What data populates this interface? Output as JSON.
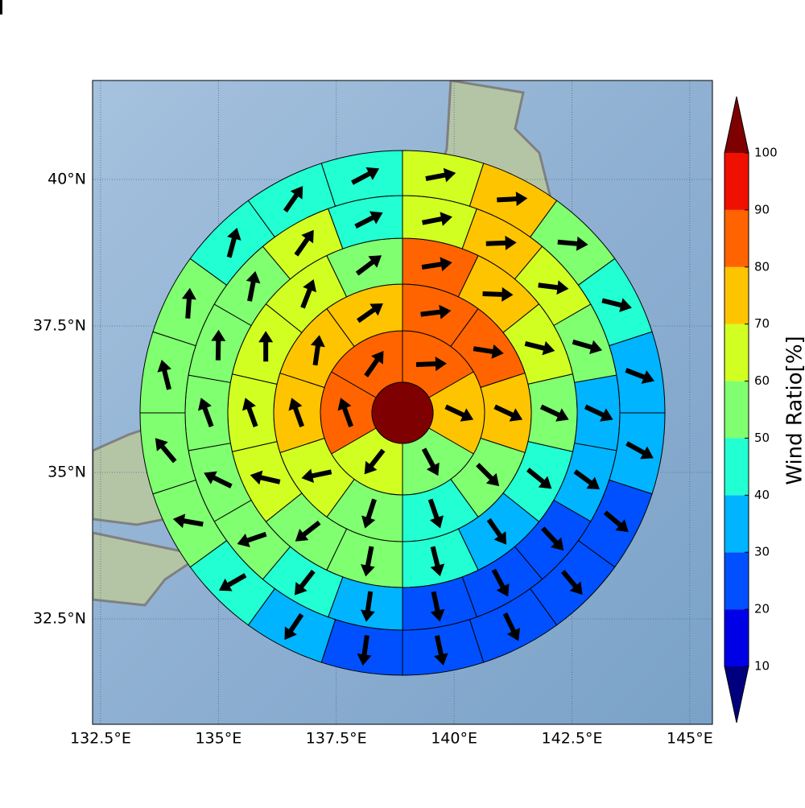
{
  "chart_data": {
    "type": "polar-map",
    "xlim": [
      132.33,
      145.48
    ],
    "ylim": [
      30.7,
      41.69
    ],
    "xticks": [
      {
        "value": 132.5,
        "label": "132.5°E"
      },
      {
        "value": 135,
        "label": "135°E"
      },
      {
        "value": 137.5,
        "label": "137.5°E"
      },
      {
        "value": 140,
        "label": "140°E"
      },
      {
        "value": 142.5,
        "label": "142.5°E"
      },
      {
        "value": 145,
        "label": "145°E"
      }
    ],
    "yticks": [
      {
        "value": 32.5,
        "label": "32.5°N"
      },
      {
        "value": 35,
        "label": "35°N"
      },
      {
        "value": 37.5,
        "label": "37.5°N"
      },
      {
        "value": 40,
        "label": "40°N"
      }
    ],
    "grid": true,
    "center_value": 105,
    "rings": [
      {
        "values": [
          85,
          75,
          55,
          65,
          85,
          85
        ],
        "directions": [
          88,
          115,
          152,
          218,
          340,
          35
        ]
      },
      {
        "values": [
          85,
          85,
          75,
          55,
          45,
          55,
          65,
          75,
          75,
          75
        ],
        "directions": [
          83,
          99,
          115,
          135,
          161,
          198,
          258,
          340,
          8,
          55
        ]
      },
      {
        "values": [
          85,
          75,
          60,
          55,
          40,
          30,
          40,
          50,
          50,
          60,
          60,
          65,
          65,
          55
        ],
        "directions": [
          81,
          92,
          104,
          115,
          129,
          145,
          166,
          191,
          232,
          283,
          340,
          0,
          21,
          53
        ]
      },
      {
        "values": [
          65,
          75,
          65,
          55,
          35,
          30,
          25,
          20,
          20,
          30,
          45,
          50,
          55,
          50,
          50,
          55,
          60,
          45
        ],
        "directions": [
          79,
          88,
          97,
          106,
          115,
          126,
          137,
          152,
          168,
          188,
          218,
          251,
          296,
          340,
          1,
          11,
          35,
          63
        ]
      },
      {
        "values": [
          65,
          70,
          55,
          45,
          35,
          30,
          25,
          20,
          20,
          20,
          20,
          30,
          40,
          50,
          50,
          55,
          55,
          45,
          45,
          45
        ],
        "directions": [
          79,
          87,
          95,
          104,
          111,
          119,
          130,
          140,
          154,
          168,
          188,
          214,
          240,
          280,
          320,
          346,
          4,
          15,
          35,
          62
        ]
      },
      {
        "values": [
          55,
          65,
          55,
          45,
          45,
          35,
          30,
          25,
          25,
          20,
          15,
          15,
          15,
          15,
          25,
          30,
          35,
          45,
          45,
          45,
          40,
          35,
          25,
          35
        ],
        "directions": [
          78,
          85,
          92,
          98,
          105,
          112,
          118,
          128,
          136,
          146,
          160,
          168,
          184,
          208,
          230,
          255,
          290,
          320,
          345,
          2,
          13,
          29,
          50,
          68
        ]
      }
    ],
    "colorbar": {
      "label": "Wind Ratio[%]",
      "ticks": [
        10,
        20,
        30,
        40,
        50,
        60,
        70,
        80,
        90,
        100
      ],
      "colors": [
        "#0000e6",
        "#0050ff",
        "#00b4ff",
        "#22ffd2",
        "#80ff70",
        "#d2ff22",
        "#ffc400",
        "#ff6400",
        "#f01000"
      ],
      "under": "#00007f",
      "over": "#7f0000"
    }
  }
}
